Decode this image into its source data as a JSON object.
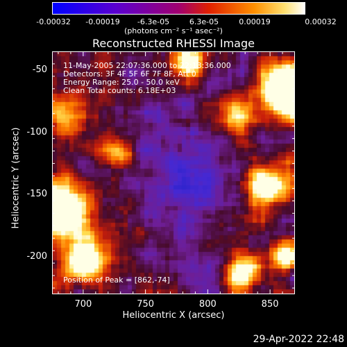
{
  "colorbar": {
    "ticks": [
      "-0.00032",
      "-0.00019",
      "-6.3e-05",
      "6.3e-05",
      "0.00019",
      "0.00032"
    ],
    "unit": "(photons cm⁻² s⁻¹ asec⁻²)",
    "colors": [
      "#0000ff",
      "#7000c0",
      "#a00080",
      "#e03000",
      "#ff9000",
      "#ffffff"
    ]
  },
  "chart_data": {
    "type": "heatmap",
    "title": "Reconstructed RHESSI Image",
    "xlabel": "Heliocentric X (arcsec)",
    "ylabel": "Heliocentric Y (arcsec)",
    "xlim": [
      675,
      870
    ],
    "ylim": [
      -230,
      -35
    ],
    "xticks": [
      "700",
      "750",
      "800",
      "850"
    ],
    "yticks": [
      "-50",
      "-100",
      "-150",
      "-200"
    ],
    "peak": [
      862,
      -74
    ],
    "annotations": [
      "11-May-2005 22:07:36.000 to 22:13:36.000",
      "Detectors: 3F 4F 5F 6F 7F 8F, Att 0",
      "Energy Range: 25.0 - 50.0 keV",
      "Clean     Total counts: 6.18E+03"
    ],
    "peak_label": "Position of Peak = [862,-74]"
  },
  "timestamp": "29-Apr-2022 22:48"
}
